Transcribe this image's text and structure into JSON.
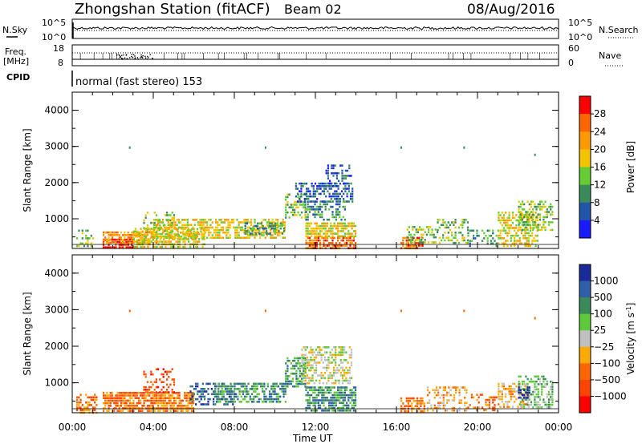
{
  "header": {
    "station": "Zhongshan Station (fitACF)",
    "beam": "Beam 02",
    "date": "08/Aug/2016"
  },
  "top_panels": {
    "nsky_label": "N.Sky",
    "nsky_ticks": [
      "10^5",
      "10^0"
    ],
    "nsearch_label": "N.Search",
    "nsearch_ticks": [
      "10^5",
      "10^0"
    ],
    "freq_label": "Freq.",
    "freq_unit": "[MHz]",
    "freq_ticks": [
      "18",
      "8"
    ],
    "nave_label": "Nave",
    "nave_ticks": [
      "60",
      "0"
    ],
    "cpid_label": "CPID",
    "cpid_text": "normal (fast stereo) 153"
  },
  "chart_data": [
    {
      "type": "heatmap",
      "panel": "power",
      "ylabel": "Slant Range [km]",
      "yticks": [
        "1000",
        "2000",
        "3000",
        "4000"
      ],
      "ylim": [
        180,
        4500
      ],
      "xlim_hours": [
        0,
        24
      ],
      "colorbar_label": "Power [dB]",
      "colorbar_ticks": [
        "4",
        "8",
        "12",
        "16",
        "20",
        "24",
        "28"
      ],
      "colorbar_colors": [
        "#1a1aff",
        "#2255aa",
        "#3a8a5a",
        "#66cc33",
        "#f2c400",
        "#ff9900",
        "#ff6600",
        "#ff0000"
      ],
      "bands": [
        {
          "t": [
            1.5,
            3.0
          ],
          "r": [
            200,
            450
          ],
          "lvl": 7,
          "density": 0.75
        },
        {
          "t": [
            1.5,
            4.2
          ],
          "r": [
            300,
            650
          ],
          "lvl": 5,
          "density": 0.7
        },
        {
          "t": [
            3.0,
            6.5
          ],
          "r": [
            250,
            750
          ],
          "lvl": 4,
          "density": 0.65
        },
        {
          "t": [
            3.5,
            5.0
          ],
          "r": [
            700,
            1200
          ],
          "lvl": 3,
          "density": 0.35
        },
        {
          "t": [
            4.0,
            10.5
          ],
          "r": [
            500,
            1000
          ],
          "lvl": 4,
          "density": 0.6
        },
        {
          "t": [
            8.5,
            10.5
          ],
          "r": [
            600,
            900
          ],
          "lvl": 2,
          "density": 0.55
        },
        {
          "t": [
            10.5,
            11.5
          ],
          "r": [
            1000,
            1700
          ],
          "lvl": 3,
          "density": 0.55
        },
        {
          "t": [
            11.5,
            14.0
          ],
          "r": [
            500,
            900
          ],
          "lvl": 4,
          "density": 0.75
        },
        {
          "t": [
            11.5,
            14.0
          ],
          "r": [
            200,
            500
          ],
          "lvl": 6,
          "density": 0.7
        },
        {
          "t": [
            11.0,
            13.8
          ],
          "r": [
            1500,
            2000
          ],
          "lvl": 1,
          "density": 0.55
        },
        {
          "t": [
            11.5,
            13.5
          ],
          "r": [
            1000,
            1500
          ],
          "lvl": 2,
          "density": 0.45
        },
        {
          "t": [
            12.5,
            13.8
          ],
          "r": [
            2000,
            2500
          ],
          "lvl": 1,
          "density": 0.35
        },
        {
          "t": [
            16.2,
            17.3
          ],
          "r": [
            200,
            500
          ],
          "lvl": 6,
          "density": 0.7
        },
        {
          "t": [
            16.5,
            18.0
          ],
          "r": [
            350,
            800
          ],
          "lvl": 3,
          "density": 0.45
        },
        {
          "t": [
            18.0,
            19.5
          ],
          "r": [
            300,
            1000
          ],
          "lvl": 3,
          "density": 0.4
        },
        {
          "t": [
            19.5,
            21.0
          ],
          "r": [
            250,
            700
          ],
          "lvl": 2,
          "density": 0.35
        },
        {
          "t": [
            21.0,
            23.0
          ],
          "r": [
            250,
            1200
          ],
          "lvl": 4,
          "density": 0.55
        },
        {
          "t": [
            22.0,
            23.7
          ],
          "r": [
            700,
            1500
          ],
          "lvl": 3,
          "density": 0.5
        },
        {
          "t": [
            0.2,
            1.0
          ],
          "r": [
            250,
            700
          ],
          "lvl": 3,
          "density": 0.4
        }
      ]
    },
    {
      "type": "heatmap",
      "panel": "velocity",
      "ylabel": "Slant Range [km]",
      "yticks": [
        "1000",
        "2000",
        "3000",
        "4000"
      ],
      "ylim": [
        180,
        4500
      ],
      "xlim_hours": [
        0,
        24
      ],
      "xticks": [
        "00:00",
        "04:00",
        "08:00",
        "12:00",
        "16:00",
        "20:00",
        "00:00"
      ],
      "xlabel": "Time UT",
      "colorbar_label": "Velocity [m s",
      "colorbar_label_sup": "-1",
      "colorbar_label_end": "]",
      "colorbar_ticks": [
        "1000",
        "500",
        "100",
        "25",
        "−25",
        "−100",
        "−500",
        "−1000"
      ],
      "colorbar_colors": [
        "#1a2a99",
        "#2e5fa8",
        "#3a8a5a",
        "#5ec93a",
        "#c0c0c0",
        "#ffaa00",
        "#ff6600",
        "#ff4400",
        "#ff0000"
      ],
      "bands": [
        {
          "t": [
            0.2,
            1.2
          ],
          "r": [
            200,
            700
          ],
          "lvl": 6,
          "density": 0.45
        },
        {
          "t": [
            1.5,
            6.0
          ],
          "r": [
            200,
            750
          ],
          "lvl": 6,
          "density": 0.75
        },
        {
          "t": [
            3.5,
            5.0
          ],
          "r": [
            700,
            1400
          ],
          "lvl": 7,
          "density": 0.35
        },
        {
          "t": [
            5.8,
            8.0
          ],
          "r": [
            400,
            1000
          ],
          "lvl": 1,
          "density": 0.45
        },
        {
          "t": [
            7.0,
            10.5
          ],
          "r": [
            500,
            1000
          ],
          "lvl": 2,
          "density": 0.65
        },
        {
          "t": [
            10.5,
            11.5
          ],
          "r": [
            900,
            1700
          ],
          "lvl": 2,
          "density": 0.55
        },
        {
          "t": [
            11.5,
            14.0
          ],
          "r": [
            200,
            900
          ],
          "lvl": 2,
          "density": 0.75
        },
        {
          "t": [
            11.3,
            13.8
          ],
          "r": [
            1000,
            2000
          ],
          "lvl": 4,
          "density": 0.55
        },
        {
          "t": [
            16.2,
            17.4
          ],
          "r": [
            200,
            600
          ],
          "lvl": 6,
          "density": 0.65
        },
        {
          "t": [
            17.5,
            19.5
          ],
          "r": [
            250,
            900
          ],
          "lvl": 5,
          "density": 0.4
        },
        {
          "t": [
            19.5,
            21.0
          ],
          "r": [
            250,
            700
          ],
          "lvl": 6,
          "density": 0.35
        },
        {
          "t": [
            21.0,
            22.5
          ],
          "r": [
            300,
            1000
          ],
          "lvl": 5,
          "density": 0.45
        },
        {
          "t": [
            22.0,
            23.7
          ],
          "r": [
            300,
            1200
          ],
          "lvl": 3,
          "density": 0.55
        },
        {
          "t": [
            22.0,
            22.6
          ],
          "r": [
            600,
            900
          ],
          "lvl": 0,
          "density": 0.5
        }
      ]
    }
  ],
  "isolated_points": [
    {
      "t": 2.8,
      "r": 3000
    },
    {
      "t": 9.5,
      "r": 3000
    },
    {
      "t": 16.2,
      "r": 3000
    },
    {
      "t": 19.3,
      "r": 3000
    },
    {
      "t": 22.8,
      "r": 2800
    }
  ]
}
